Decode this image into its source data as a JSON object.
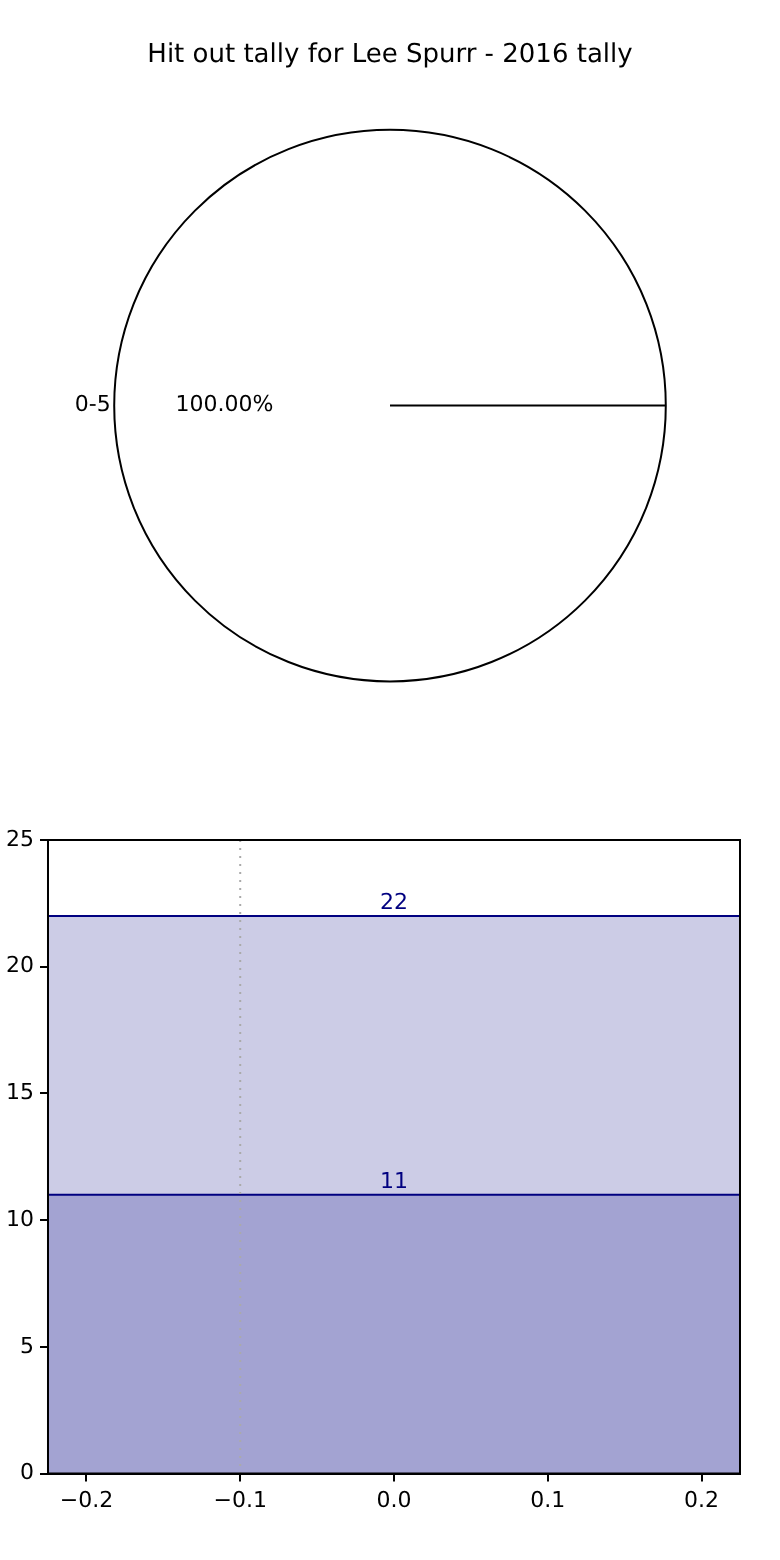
{
  "chart_data": [
    {
      "type": "pie",
      "title": "Hit out tally for Lee Spurr - 2016 tally",
      "categories": [
        "0-5"
      ],
      "values": [
        100
      ],
      "colors": [
        "#ffffff"
      ],
      "value_labels": [
        "100.00%"
      ]
    },
    {
      "type": "area",
      "x": [
        -0.225,
        0.225
      ],
      "series": [
        {
          "color": "#000080",
          "values": [
            11,
            11
          ]
        },
        {
          "color": "#000080",
          "values": [
            22,
            22
          ]
        }
      ],
      "xlim": [
        -0.225,
        0.225
      ],
      "ylim": [
        0,
        25
      ],
      "xticks": [
        {
          "value": -0.2,
          "label": "−0.2"
        },
        {
          "value": -0.1,
          "label": "−0.1"
        },
        {
          "value": 0,
          "label": "0.0"
        },
        {
          "value": 0.1,
          "label": "0.1"
        },
        {
          "value": 0.2,
          "label": "0.2"
        }
      ],
      "yticks": [
        0,
        5,
        10,
        15,
        20,
        25
      ],
      "ref_lines": [
        {
          "axis": "x",
          "value": -0.1,
          "color": "#aaaaaa",
          "line_style": "dotted"
        }
      ],
      "annotations": [
        {
          "text": "22",
          "x": 0,
          "y": 22
        },
        {
          "text": "11",
          "x": 0,
          "y": 11
        }
      ],
      "grid": false,
      "legend": false
    }
  ]
}
